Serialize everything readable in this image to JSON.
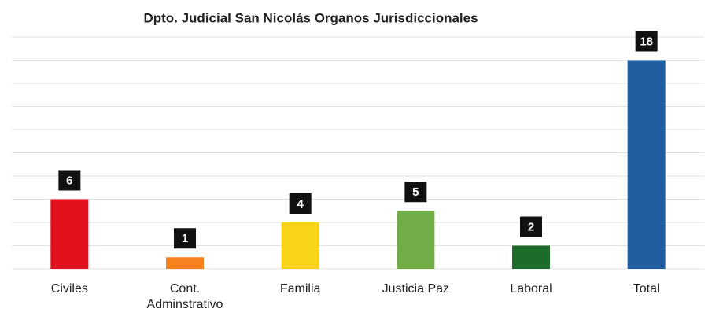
{
  "chart_data": {
    "type": "bar",
    "title": "Dpto. Judicial San Nicolás Organos Jurisdiccionales",
    "categories": [
      "Civiles",
      "Cont. Adminstrativo",
      "Familia",
      "Justicia Paz",
      "Laboral",
      "Total"
    ],
    "values": [
      6,
      1,
      4,
      5,
      2,
      18
    ],
    "colors": [
      "#e3101e",
      "#f5821f",
      "#f7d417",
      "#70ad47",
      "#1e6b2a",
      "#1f5fa0"
    ],
    "ylim": [
      0,
      20
    ],
    "yticks": [
      0,
      2,
      4,
      6,
      8,
      10,
      12,
      14,
      16,
      18,
      20
    ],
    "grid": true
  }
}
